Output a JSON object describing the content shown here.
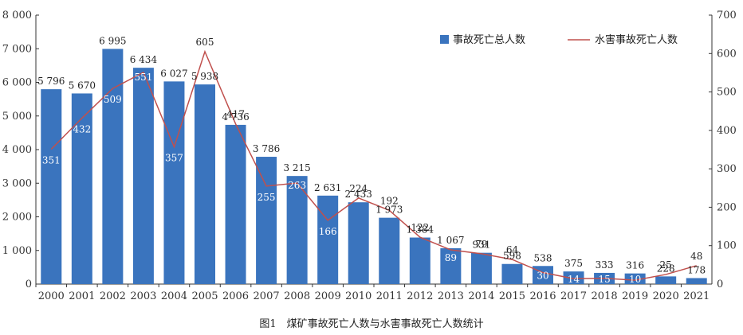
{
  "caption": "图1　煤矿事故死亡人数与水害事故死亡人数统计",
  "chart_data": {
    "type": "bar+line",
    "categories": [
      "2000",
      "2001",
      "2002",
      "2003",
      "2004",
      "2005",
      "2006",
      "2007",
      "2008",
      "2009",
      "2010",
      "2011",
      "2012",
      "2013",
      "2014",
      "2015",
      "2016",
      "2017",
      "2018",
      "2019",
      "2020",
      "2021"
    ],
    "series": [
      {
        "name": "事故死亡总人数",
        "type": "bar",
        "axis": "left",
        "color": "#3a74be",
        "values": [
          5796,
          5670,
          6995,
          6434,
          6027,
          5938,
          4736,
          3786,
          3215,
          2631,
          2433,
          1973,
          1384,
          1067,
          931,
          598,
          538,
          375,
          333,
          316,
          228,
          178
        ],
        "labels": [
          "5 796",
          "5 670",
          "6 995",
          "6 434",
          "6 027",
          "5 938",
          "4 736",
          "3 786",
          "3 215",
          "2 631",
          "2 433",
          "1 973",
          "1 384",
          "1 067",
          "931",
          "598",
          "538",
          "375",
          "333",
          "316",
          "228",
          "178"
        ]
      },
      {
        "name": "水害事故死亡人数",
        "type": "line",
        "axis": "right",
        "color": "#c0504d",
        "values": [
          351,
          432,
          509,
          551,
          357,
          605,
          417,
          255,
          263,
          166,
          224,
          192,
          122,
          89,
          79,
          64,
          30,
          14,
          15,
          10,
          25,
          48
        ]
      }
    ],
    "left_axis": {
      "ylim": [
        0,
        8000
      ],
      "ticks": [
        0,
        1000,
        2000,
        3000,
        4000,
        5000,
        6000,
        7000,
        8000
      ],
      "tick_labels": [
        "0",
        "1 000",
        "2 000",
        "3 000",
        "4 000",
        "5 000",
        "6 000",
        "7 000",
        "8 000"
      ]
    },
    "right_axis": {
      "ylim": [
        0,
        700
      ],
      "ticks": [
        0,
        100,
        200,
        300,
        400,
        500,
        600,
        700
      ],
      "tick_labels": [
        "0",
        "100",
        "200",
        "300",
        "400",
        "500",
        "600",
        "700"
      ]
    },
    "legend_position": "top-right",
    "grid": false
  }
}
